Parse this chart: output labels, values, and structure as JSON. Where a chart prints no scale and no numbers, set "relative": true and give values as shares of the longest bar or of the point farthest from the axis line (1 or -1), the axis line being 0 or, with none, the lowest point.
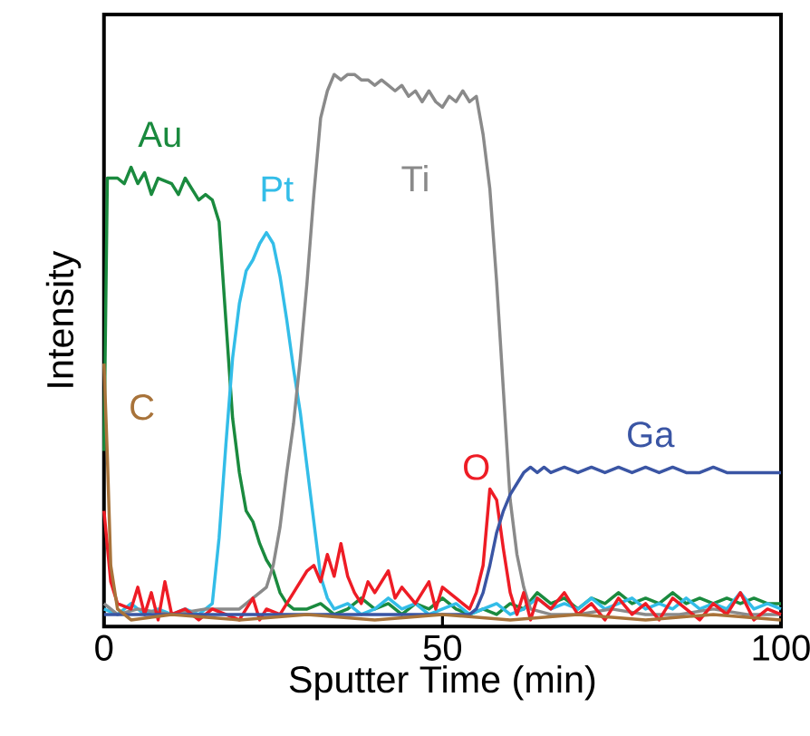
{
  "chart_data": {
    "type": "line",
    "relative": true,
    "xlabel": "Sputter Time (min)",
    "ylabel": "Intensity",
    "xlim": [
      0,
      100
    ],
    "xticks": [
      0,
      50,
      100
    ],
    "marker": "none",
    "series": [
      {
        "name": "Au",
        "color": "#1a8a3e",
        "x": [
          0,
          0.5,
          2,
          3,
          4,
          5,
          6,
          7,
          8,
          10,
          11,
          12,
          13,
          14,
          15,
          16,
          17,
          18,
          19,
          20,
          21,
          22,
          23,
          24,
          25,
          26,
          27,
          28,
          30,
          32,
          34,
          36,
          38,
          40,
          42,
          44,
          46,
          48,
          50,
          52,
          54,
          56,
          58,
          60,
          62,
          64,
          66,
          68,
          70,
          72,
          74,
          76,
          78,
          80,
          82,
          84,
          86,
          88,
          90,
          92,
          94,
          96,
          98,
          100
        ],
        "values": [
          0.31,
          0.81,
          0.81,
          0.8,
          0.83,
          0.8,
          0.82,
          0.78,
          0.81,
          0.8,
          0.78,
          0.81,
          0.79,
          0.77,
          0.78,
          0.77,
          0.73,
          0.55,
          0.37,
          0.27,
          0.2,
          0.18,
          0.14,
          0.11,
          0.09,
          0.05,
          0.03,
          0.02,
          0.02,
          0.03,
          0.01,
          0.02,
          0.04,
          0.02,
          0.03,
          0.01,
          0.03,
          0.02,
          0.04,
          0.02,
          0.01,
          0.02,
          0.01,
          0.03,
          0.02,
          0.05,
          0.03,
          0.04,
          0.02,
          0.04,
          0.03,
          0.05,
          0.03,
          0.04,
          0.03,
          0.05,
          0.03,
          0.04,
          0.03,
          0.04,
          0.03,
          0.04,
          0.03,
          0.03
        ]
      },
      {
        "name": "Pt",
        "color": "#33bde8",
        "x": [
          0,
          2,
          4,
          6,
          8,
          10,
          12,
          14,
          16,
          17,
          18,
          19,
          20,
          21,
          22,
          23,
          24,
          25,
          26,
          27,
          28,
          29,
          30,
          31,
          32,
          33,
          34,
          36,
          38,
          40,
          42,
          44,
          46,
          48,
          50,
          52,
          54,
          56,
          58,
          60,
          62,
          64,
          66,
          68,
          70,
          72,
          74,
          76,
          78,
          80,
          82,
          84,
          86,
          88,
          90,
          92,
          94,
          96,
          98,
          100
        ],
        "values": [
          0.02,
          0.01,
          0.03,
          0.01,
          0.02,
          0.01,
          0.02,
          0.01,
          0.03,
          0.15,
          0.32,
          0.48,
          0.58,
          0.64,
          0.66,
          0.69,
          0.71,
          0.69,
          0.63,
          0.55,
          0.46,
          0.38,
          0.28,
          0.18,
          0.08,
          0.04,
          0.02,
          0.03,
          0.01,
          0.02,
          0.04,
          0.02,
          0.03,
          0.01,
          0.02,
          0.03,
          0.01,
          0.02,
          0.03,
          0.01,
          0.02,
          0.04,
          0.02,
          0.03,
          0.02,
          0.04,
          0.02,
          0.03,
          0.04,
          0.02,
          0.03,
          0.02,
          0.04,
          0.02,
          0.03,
          0.02,
          0.05,
          0.02,
          0.03,
          0.02
        ]
      },
      {
        "name": "Ti",
        "color": "#8a8a8a",
        "x": [
          0,
          2,
          5,
          10,
          15,
          20,
          21,
          22,
          23,
          24,
          25,
          26,
          27,
          28,
          29,
          30,
          31,
          32,
          33,
          34,
          35,
          36,
          37,
          38,
          39,
          40,
          41,
          42,
          43,
          44,
          45,
          46,
          47,
          48,
          49,
          50,
          51,
          52,
          53,
          54,
          55,
          56,
          57,
          58,
          59,
          60,
          61,
          62,
          63,
          66,
          70,
          75,
          80,
          85,
          90,
          95,
          100
        ],
        "values": [
          0.03,
          0.01,
          0.02,
          0.01,
          0.02,
          0.02,
          0.03,
          0.04,
          0.05,
          0.06,
          0.1,
          0.17,
          0.27,
          0.36,
          0.48,
          0.62,
          0.78,
          0.92,
          0.97,
          1.0,
          0.99,
          1.0,
          1.0,
          0.99,
          0.99,
          0.98,
          0.99,
          0.98,
          0.97,
          0.98,
          0.96,
          0.97,
          0.95,
          0.97,
          0.95,
          0.94,
          0.96,
          0.95,
          0.97,
          0.95,
          0.96,
          0.89,
          0.79,
          0.62,
          0.42,
          0.22,
          0.12,
          0.06,
          0.02,
          0.01,
          0.01,
          0.02,
          0.01,
          0.01,
          0.02,
          0.01,
          0.01
        ]
      },
      {
        "name": "O",
        "color": "#ee1c25",
        "x": [
          0,
          1,
          2,
          4,
          5,
          6,
          7,
          8,
          9,
          10,
          12,
          14,
          16,
          18,
          20,
          22,
          23,
          24,
          26,
          28,
          30,
          31,
          32,
          33,
          34,
          35,
          36,
          37,
          38,
          39,
          40,
          42,
          43,
          44,
          46,
          48,
          49,
          50,
          52,
          54,
          55,
          56,
          57,
          58,
          59,
          60,
          61,
          62,
          63,
          64,
          66,
          68,
          70,
          72,
          74,
          76,
          78,
          80,
          82,
          84,
          86,
          88,
          90,
          92,
          94,
          96,
          98,
          100
        ],
        "values": [
          0.2,
          0.07,
          0.03,
          0.02,
          0.06,
          0.01,
          0.05,
          0.0,
          0.07,
          0.01,
          0.02,
          0.0,
          0.02,
          0.01,
          0.0,
          0.04,
          0.0,
          0.02,
          0.01,
          0.05,
          0.09,
          0.1,
          0.07,
          0.12,
          0.08,
          0.14,
          0.08,
          0.05,
          0.03,
          0.07,
          0.05,
          0.09,
          0.04,
          0.06,
          0.03,
          0.07,
          0.02,
          0.06,
          0.04,
          0.02,
          0.05,
          0.1,
          0.24,
          0.22,
          0.13,
          0.05,
          0.01,
          0.05,
          0.0,
          0.04,
          0.02,
          0.05,
          0.01,
          0.03,
          0.0,
          0.04,
          0.01,
          0.03,
          0.0,
          0.04,
          0.02,
          0.0,
          0.03,
          0.01,
          0.05,
          0.0,
          0.02,
          0.01
        ]
      },
      {
        "name": "Ga",
        "color": "#3a55a4",
        "x": [
          0,
          10,
          20,
          30,
          40,
          50,
          54,
          55,
          56,
          57,
          58,
          59,
          60,
          61,
          62,
          63,
          64,
          65,
          66,
          68,
          70,
          72,
          74,
          76,
          78,
          80,
          82,
          84,
          86,
          88,
          90,
          92,
          94,
          96,
          98,
          100
        ],
        "values": [
          0.01,
          0.01,
          0.01,
          0.01,
          0.01,
          0.01,
          0.01,
          0.02,
          0.05,
          0.1,
          0.16,
          0.2,
          0.23,
          0.25,
          0.27,
          0.28,
          0.27,
          0.28,
          0.27,
          0.28,
          0.27,
          0.28,
          0.27,
          0.28,
          0.27,
          0.28,
          0.27,
          0.28,
          0.27,
          0.27,
          0.28,
          0.27,
          0.27,
          0.27,
          0.27,
          0.27
        ]
      },
      {
        "name": "C",
        "color": "#a8733a",
        "x": [
          0,
          0.5,
          1,
          2,
          4,
          10,
          20,
          30,
          40,
          50,
          60,
          70,
          80,
          90,
          100
        ],
        "values": [
          0.47,
          0.3,
          0.1,
          0.02,
          0.0,
          0.01,
          0.0,
          0.01,
          0.0,
          0.01,
          0.0,
          0.01,
          0.0,
          0.01,
          0.0
        ]
      }
    ]
  }
}
